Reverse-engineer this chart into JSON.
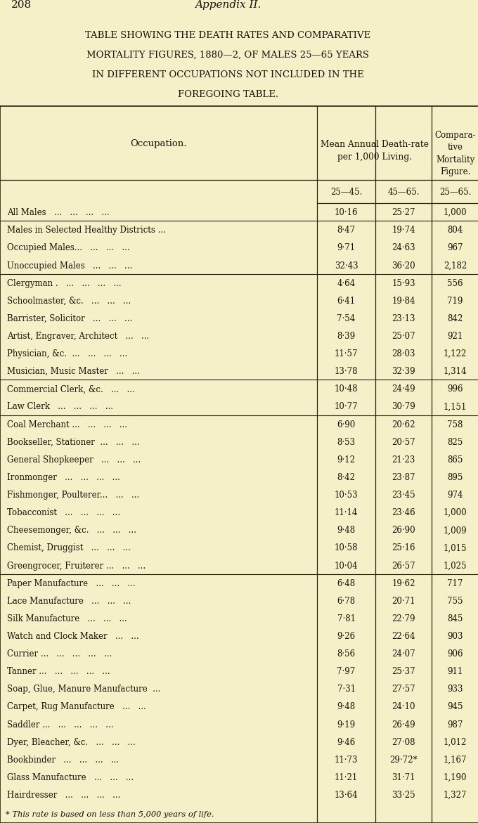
{
  "page_number": "208",
  "appendix": "Appendix II.",
  "title_lines": [
    [
      "T",
      "ABLE ",
      "S",
      "HOWING THE ",
      "D",
      "EATH ",
      "R",
      "ATES AND ",
      "C",
      "OMPARATIVE"
    ],
    [
      "M",
      "ORTALITY ",
      "F",
      "IGURES, 1880—2, OF ",
      "M",
      "ALES 25—65 ",
      "Y",
      "EARS"
    ],
    [
      "IN DIFFERENT ",
      "O",
      "CCUPATIONS NOT INCLUDED IN THE"
    ],
    [
      "F",
      "OREGOING ",
      "T",
      "ABLE."
    ]
  ],
  "col_header_occ": "Occupation.",
  "col_header_group1": "Mean Annual Death-rate\nper 1,000 Living.",
  "col_header_group2": "Compara-\ntive\nMortality\nFigure.",
  "col_header_sub": [
    "25—45.",
    "45—65.",
    "25—65."
  ],
  "rows": [
    [
      "All Males   ...   ...   ...   ...",
      "10·16",
      "25·27",
      "1,000"
    ],
    [
      "Males in Selected Healthy Districts ...",
      "8·47",
      "19·74",
      "804"
    ],
    [
      "Occupied Males...   ...   ...   ...",
      "9·71",
      "24·63",
      "967"
    ],
    [
      "Unoccupied Males   ...   ...   ...",
      "32·43",
      "36·20",
      "2,182"
    ],
    [
      "Clergyman .   ...   ...   ...   ...",
      "4·64",
      "15·93",
      "556"
    ],
    [
      "Schoolmaster, &c.   ...   ...   ...",
      "6·41",
      "19·84",
      "719"
    ],
    [
      "Barrister, Solicitor   ...   ...   ...",
      "7·54",
      "23·13",
      "842"
    ],
    [
      "Artist, Engraver, Architect   ...   ...",
      "8·39",
      "25·07",
      "921"
    ],
    [
      "Physician, &c.  ...   ...   ...   ...",
      "11·57",
      "28·03",
      "1,122"
    ],
    [
      "Musician, Music Master   ...   ...",
      "13·78",
      "32·39",
      "1,314"
    ],
    [
      "Commercial Clerk, &c.   ...   ...",
      "10·48",
      "24·49",
      "996"
    ],
    [
      "Law Clerk   ...   ...   ...   ...",
      "10·77",
      "30·79",
      "1,151"
    ],
    [
      "Coal Merchant ...   ...   ...   ...",
      "6·90",
      "20·62",
      "758"
    ],
    [
      "Bookseller, Stationer  ...   ...   ...",
      "8·53",
      "20·57",
      "825"
    ],
    [
      "General Shopkeeper   ...   ...   ...",
      "9·12",
      "21·23",
      "865"
    ],
    [
      "Ironmonger   ...   ...   ...   ...",
      "8·42",
      "23·87",
      "895"
    ],
    [
      "Fishmonger, Poulterer...   ...   ...",
      "10·53",
      "23·45",
      "974"
    ],
    [
      "Tobacconist   ...   ...   ...   ...",
      "11·14",
      "23·46",
      "1,000"
    ],
    [
      "Cheesemonger, &c.   ...   ...   ...",
      "9·48",
      "26·90",
      "1,009"
    ],
    [
      "Chemist, Druggist   ...   ...   ...",
      "10·58",
      "25·16",
      "1,015"
    ],
    [
      "Greengrocer, Fruiterer ...   ...   ...",
      "10·04",
      "26·57",
      "1,025"
    ],
    [
      "Paper Manufacture   ...   ...   ...",
      "6·48",
      "19·62",
      "717"
    ],
    [
      "Lace Manufacture   ...   ...   ...",
      "6·78",
      "20·71",
      "755"
    ],
    [
      "Silk Manufacture   ...   ...   ...",
      "7·81",
      "22·79",
      "845"
    ],
    [
      "Watch and Clock Maker   ...   ...",
      "9·26",
      "22·64",
      "903"
    ],
    [
      "Currier ...   ...   ...   ...   ...",
      "8·56",
      "24·07",
      "906"
    ],
    [
      "Tanner ...   ...   ...   ...   ...",
      "7·97",
      "25·37",
      "911"
    ],
    [
      "Soap, Glue, Manure Manufacture  ...",
      "7·31",
      "27·57",
      "933"
    ],
    [
      "Carpet, Rug Manufacture   ...   ...",
      "9·48",
      "24·10",
      "945"
    ],
    [
      "Saddler ...   ...   ...   ...   ...",
      "9·19",
      "26·49",
      "987"
    ],
    [
      "Dyer, Bleacher, &c.   ...   ...   ...",
      "9·46",
      "27·08",
      "1,012"
    ],
    [
      "Bookbinder   ...   ...   ...   ...",
      "11·73",
      "29·72*",
      "1,167"
    ],
    [
      "Glass Manufacture   ...   ...   ...",
      "11·21",
      "31·71",
      "1,190"
    ],
    [
      "Hairdresser   ...   ...   ...   ...",
      "13·64",
      "33·25",
      "1,327"
    ]
  ],
  "group_breaks": [
    1,
    4,
    10,
    12,
    21
  ],
  "footnote": "* This rate is based on less than 5,000 years of life.",
  "bg_color": "#f5f0c8",
  "text_color": "#1a1208",
  "line_color": "#2a2010"
}
